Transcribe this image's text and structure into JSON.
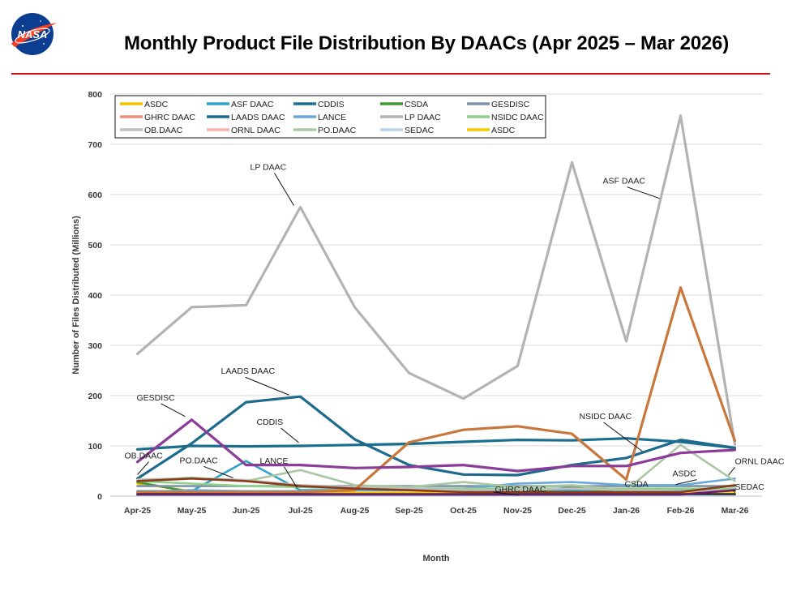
{
  "header": {
    "title": "Monthly Product File Distribution By DAACs (Apr 2025 – Mar 2026)",
    "logo_text": "NASA",
    "rule_color": "#c8161d"
  },
  "chart_data": {
    "type": "line",
    "title": "Monthly Product File Distribution By DAACs (Apr 2025 – Mar 2026)",
    "xlabel": "Month",
    "ylabel": "Number of Files Distributed (Millions)",
    "ylim": [
      0,
      800
    ],
    "yticks": [
      0,
      100,
      200,
      300,
      400,
      500,
      600,
      700,
      800
    ],
    "grid": "horizontal",
    "legend_position": "top-left",
    "categories": [
      "Apr-25",
      "May-25",
      "Jun-25",
      "Jul-25",
      "Aug-25",
      "Sep-25",
      "Oct-25",
      "Nov-25",
      "Dec-25",
      "Jan-26",
      "Feb-26",
      "Mar-26"
    ],
    "series": [
      {
        "name": "ASDC",
        "color": "#f2c200",
        "values": [
          25,
          10,
          7,
          7,
          7,
          7,
          7,
          7,
          10,
          7,
          7,
          10
        ]
      },
      {
        "name": "ASF DAAC",
        "color": "#2ea3c9",
        "values": [
          10,
          10,
          70,
          12,
          12,
          12,
          12,
          12,
          12,
          12,
          12,
          12
        ]
      },
      {
        "name": "CDDIS",
        "color": "#1a6e8e",
        "values": [
          93,
          100,
          99,
          100,
          102,
          104,
          108,
          112,
          111,
          115,
          108,
          96
        ]
      },
      {
        "name": "CSDA",
        "color": "#3f9a33",
        "values": [
          28,
          8,
          5,
          5,
          5,
          5,
          5,
          5,
          18,
          5,
          3,
          4
        ]
      },
      {
        "name": "GESDISC",
        "color": "#7f93a8",
        "values": [
          20,
          20,
          20,
          20,
          20,
          20,
          20,
          20,
          20,
          20,
          20,
          20
        ]
      },
      {
        "name": "GHRC DAAC",
        "color": "#e8907a",
        "values": [
          5,
          5,
          5,
          5,
          5,
          5,
          5,
          5,
          5,
          5,
          5,
          5
        ]
      },
      {
        "name": "LAADS DAAC",
        "color": "#1c6b8c",
        "values": [
          35,
          105,
          187,
          198,
          113,
          62,
          43,
          42,
          62,
          76,
          112,
          96
        ]
      },
      {
        "name": "LANCE",
        "color": "#6aa8d8",
        "values": [
          8,
          12,
          10,
          10,
          12,
          15,
          15,
          25,
          28,
          22,
          22,
          35
        ]
      },
      {
        "name": "LP DAAC",
        "color": "#b3b3b3",
        "values": [
          283,
          376,
          380,
          575,
          376,
          245,
          194,
          259,
          664,
          308,
          757,
          103
        ]
      },
      {
        "name": "NSIDC DAAC",
        "color": "#8fd08a",
        "values": [
          30,
          25,
          20,
          18,
          15,
          15,
          15,
          15,
          15,
          15,
          15,
          15
        ]
      },
      {
        "name": "OB.DAAC",
        "color": "#c0c0c0",
        "values": [
          33,
          36,
          32,
          22,
          18,
          15,
          12,
          12,
          15,
          12,
          10,
          12
        ]
      },
      {
        "name": "ORNL DAAC",
        "color": "#f4b4ac",
        "values": [
          3,
          3,
          3,
          3,
          3,
          3,
          3,
          3,
          3,
          3,
          3,
          3
        ]
      },
      {
        "name": "PO.DAAC",
        "color": "#a9c7a3",
        "values": [
          30,
          37,
          30,
          52,
          22,
          18,
          28,
          18,
          22,
          12,
          102,
          30
        ]
      },
      {
        "name": "SEDAC",
        "color": "#b7d3ea",
        "values": [
          2,
          2,
          2,
          2,
          2,
          2,
          2,
          2,
          2,
          2,
          2,
          2
        ]
      },
      {
        "name": "ASDC",
        "color": "#f5c800",
        "values": [
          5,
          5,
          5,
          5,
          5,
          5,
          5,
          5,
          5,
          5,
          5,
          5
        ]
      },
      {
        "name": "",
        "color": "#c8783d",
        "values": [
          8,
          8,
          8,
          8,
          12,
          107,
          132,
          139,
          124,
          33,
          415,
          110
        ]
      },
      {
        "name": "",
        "color": "#8b3c99",
        "values": [
          68,
          152,
          62,
          62,
          56,
          58,
          62,
          50,
          60,
          60,
          86,
          92
        ]
      },
      {
        "name": "",
        "color": "#8b3a1a",
        "values": [
          30,
          35,
          30,
          20,
          15,
          12,
          8,
          8,
          8,
          8,
          8,
          22
        ]
      },
      {
        "name": "",
        "color": "#2b2b2b",
        "values": [
          4,
          4,
          4,
          4,
          4,
          4,
          4,
          4,
          4,
          4,
          4,
          4
        ]
      },
      {
        "name": "",
        "color": "#6a1f6a",
        "values": [
          3,
          3,
          3,
          3,
          3,
          3,
          3,
          3,
          3,
          3,
          3,
          12
        ]
      }
    ],
    "annotations": [
      {
        "text": "LP DAAC",
        "at": [
          "Jul-25",
          575
        ]
      },
      {
        "text": "LAADS DAAC",
        "at": [
          "Jul-25",
          198
        ]
      },
      {
        "text": "GESDISC",
        "at": [
          "May-25",
          152
        ]
      },
      {
        "text": "CDDIS",
        "at": [
          "Jul-25",
          100
        ]
      },
      {
        "text": "PO.DAAC",
        "at": [
          "Jun-25",
          30
        ]
      },
      {
        "text": "LANCE",
        "at": [
          "Jul-25",
          10
        ]
      },
      {
        "text": "OB.DAAC",
        "at": [
          "Apr-25",
          33
        ]
      },
      {
        "text": "ASF DAAC",
        "at": [
          "Feb-26",
          415
        ]
      },
      {
        "text": "NSIDC DAAC",
        "at": [
          "Jan-26",
          76
        ]
      },
      {
        "text": "CSDA",
        "at": [
          "Jan-26",
          12
        ]
      },
      {
        "text": "ASDC",
        "at": [
          "Feb-26",
          7
        ]
      },
      {
        "text": "ORNL DAAC",
        "at": [
          "Mar-26",
          35
        ]
      },
      {
        "text": "SEDAC",
        "at": [
          "Mar-26",
          10
        ]
      },
      {
        "text": "GHRC DAAC",
        "at": [
          "Nov-25",
          5
        ]
      }
    ]
  }
}
